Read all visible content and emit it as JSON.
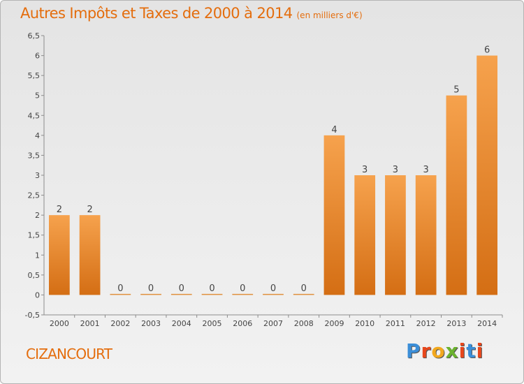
{
  "header": {
    "title": "Autres Impôts et Taxes de 2000 à 2014",
    "subtitle": "(en milliers d'€)"
  },
  "footer": {
    "commune": "CIZANCOURT",
    "logo_text": "Proxiti",
    "logo_colors": [
      "#3b8ed8",
      "#e8471c",
      "#f2a81e",
      "#6bb22f",
      "#e8471c",
      "#3b8ed8",
      "#e8471c"
    ]
  },
  "chart_data": {
    "type": "bar",
    "title": "Autres Impôts et Taxes de 2000 à 2014",
    "subtitle": "(en milliers d'€)",
    "categories": [
      "2000",
      "2001",
      "2002",
      "2003",
      "2004",
      "2005",
      "2006",
      "2007",
      "2008",
      "2009",
      "2010",
      "2011",
      "2012",
      "2013",
      "2014"
    ],
    "values": [
      2,
      2,
      0,
      0,
      0,
      0,
      0,
      0,
      0,
      4,
      3,
      3,
      3,
      5,
      6
    ],
    "data_labels": [
      "2",
      "2",
      "0",
      "0",
      "0",
      "0",
      "0",
      "0",
      "0",
      "4",
      "3",
      "3",
      "3",
      "5",
      "6"
    ],
    "ylim": [
      -0.5,
      6.5
    ],
    "yticks": [
      "-0,5",
      "0",
      "0,5",
      "1",
      "1,5",
      "2",
      "2,5",
      "3",
      "3,5",
      "4",
      "4,5",
      "5",
      "5,5",
      "6",
      "6,5"
    ],
    "ytick_values": [
      -0.5,
      0,
      0.5,
      1,
      1.5,
      2,
      2.5,
      3,
      3.5,
      4,
      4.5,
      5,
      5.5,
      6,
      6.5
    ],
    "grid": false,
    "bar_color": "#f0a050",
    "bar_color_dark": "#d97a22",
    "label_color": "#444444"
  }
}
